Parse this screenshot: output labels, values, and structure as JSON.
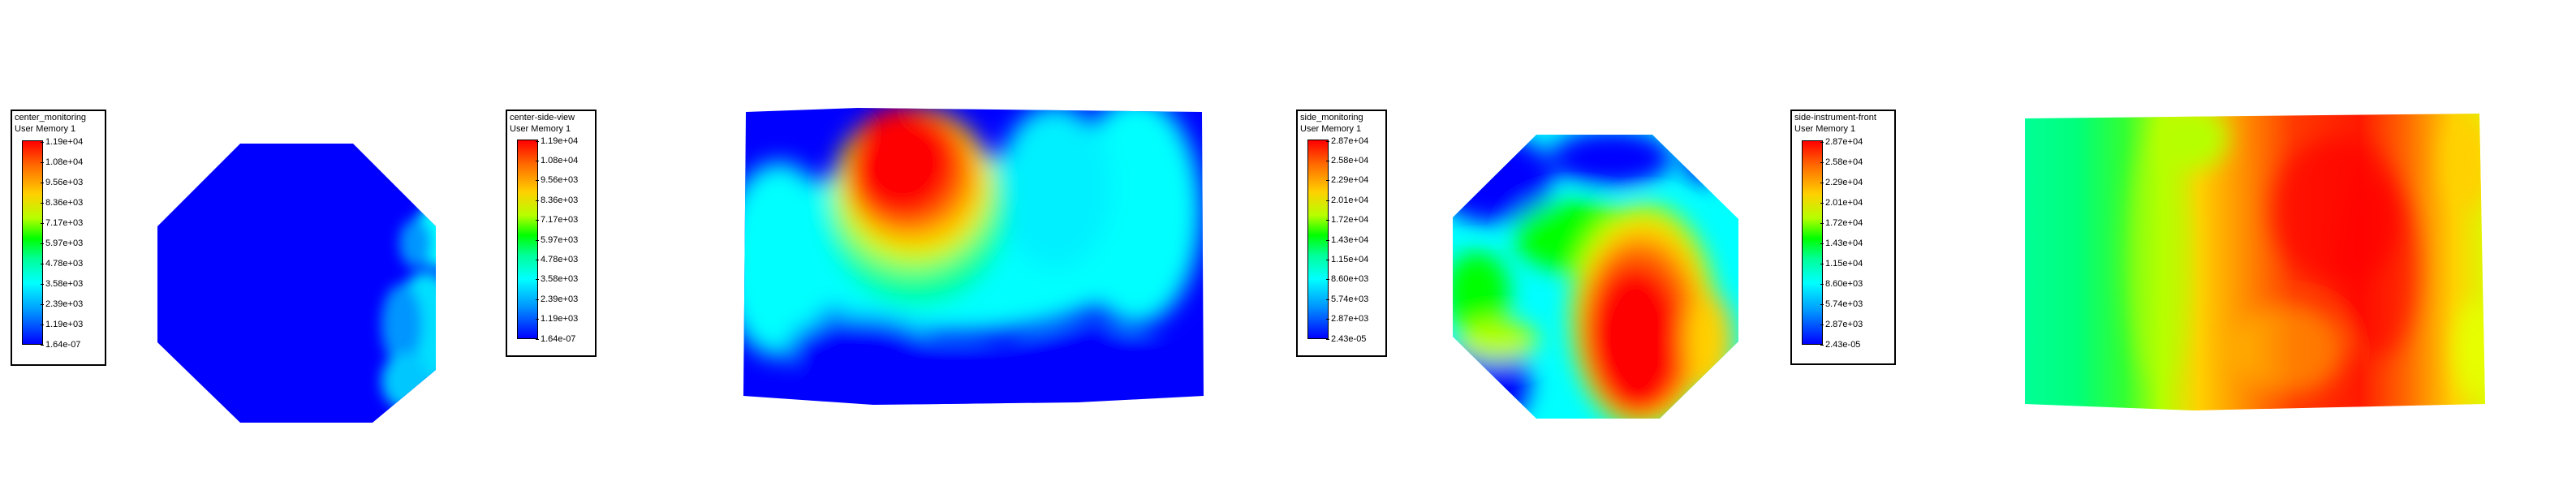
{
  "legends": [
    {
      "title": "center_monitoring",
      "subtitle": "User Memory 1",
      "ticks": [
        "1.19e+04",
        "1.08e+04",
        "9.56e+03",
        "8.36e+03",
        "7.17e+03",
        "5.97e+03",
        "4.78e+03",
        "3.58e+03",
        "2.39e+03",
        "1.19e+03",
        "1.64e-07"
      ]
    },
    {
      "title": "center-side-view",
      "subtitle": "User Memory 1",
      "ticks": [
        "1.19e+04",
        "1.08e+04",
        "9.56e+03",
        "8.36e+03",
        "7.17e+03",
        "5.97e+03",
        "4.78e+03",
        "3.58e+03",
        "2.39e+03",
        "1.19e+03",
        "1.64e-07"
      ]
    },
    {
      "title": "side_monitoring",
      "subtitle": "User Memory 1",
      "ticks": [
        "2.87e+04",
        "2.58e+04",
        "2.29e+04",
        "2.01e+04",
        "1.72e+04",
        "1.43e+04",
        "1.15e+04",
        "8.60e+03",
        "5.74e+03",
        "2.87e+03",
        "2.43e-05"
      ]
    },
    {
      "title": "side-instrument-front",
      "subtitle": "User Memory 1",
      "ticks": [
        "2.87e+04",
        "2.58e+04",
        "2.29e+04",
        "2.01e+04",
        "1.72e+04",
        "1.43e+04",
        "1.15e+04",
        "8.60e+03",
        "5.74e+03",
        "2.87e+03",
        "2.43e-05"
      ]
    }
  ],
  "colormap": [
    "#0000ff",
    "#0095ff",
    "#00ffff",
    "#00ff98",
    "#00ff00",
    "#b5ff00",
    "#ffd000",
    "#ff6a00",
    "#ff0000"
  ]
}
